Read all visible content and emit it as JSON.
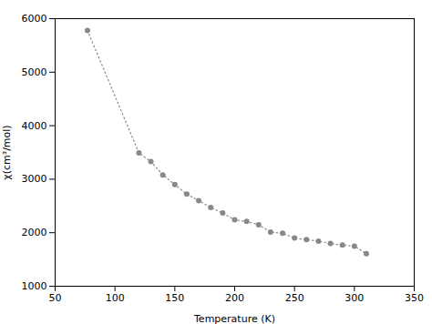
{
  "chart_data": {
    "type": "line",
    "x": [
      77,
      120,
      130,
      140,
      150,
      160,
      170,
      180,
      190,
      200,
      210,
      220,
      230,
      240,
      250,
      260,
      270,
      280,
      290,
      300,
      310
    ],
    "values": [
      5780,
      3490,
      3330,
      3080,
      2900,
      2720,
      2600,
      2470,
      2370,
      2240,
      2210,
      2150,
      2010,
      1990,
      1900,
      1870,
      1840,
      1800,
      1770,
      1750,
      1610
    ],
    "xlabel": "Temperature (K)",
    "ylabel": "χ(cm³/mol)",
    "xlim": [
      50,
      350
    ],
    "ylim": [
      1000,
      6000
    ],
    "xticks": [
      50,
      100,
      150,
      200,
      250,
      300,
      350
    ],
    "yticks": [
      1000,
      2000,
      3000,
      4000,
      5000,
      6000
    ],
    "color": "#888888",
    "marker": "circle",
    "line_style": "dotted"
  }
}
